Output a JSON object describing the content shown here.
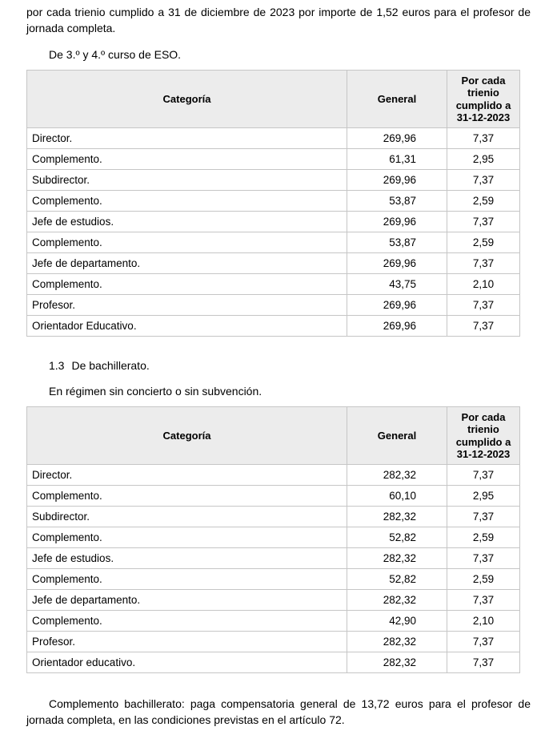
{
  "document": {
    "intro_paragraph": "por cada trienio cumplido a 31 de diciembre de 2023 por importe de 1,52 euros para el profesor de jornada completa.",
    "eso_heading": "De 3.º y 4.º curso de ESO.",
    "section": {
      "number": "1.3",
      "title": "De bachillerato."
    },
    "bachillerato_intro": "En régimen sin concierto o sin subvención.",
    "closing_paragraph": "Complemento bachillerato: paga compensatoria general de 13,72 euros para el profesor de jornada completa, en las condiciones previstas en el artículo 72."
  },
  "colors": {
    "page_bg": "#ffffff",
    "text": "#000000",
    "table_border": "#c6c6c6",
    "table_header_bg": "#ececec"
  },
  "tables": {
    "eso": {
      "headers": [
        "Categoría",
        "General",
        "Por cada trienio cumplido a 31-12-2023"
      ],
      "rows": [
        [
          "Director.",
          "269,96",
          "7,37"
        ],
        [
          "Complemento.",
          "61,31",
          "2,95"
        ],
        [
          "Subdirector.",
          "269,96",
          "7,37"
        ],
        [
          "Complemento.",
          "53,87",
          "2,59"
        ],
        [
          "Jefe de estudios.",
          "269,96",
          "7,37"
        ],
        [
          "Complemento.",
          "53,87",
          "2,59"
        ],
        [
          "Jefe de departamento.",
          "269,96",
          "7,37"
        ],
        [
          "Complemento.",
          "43,75",
          "2,10"
        ],
        [
          "Profesor.",
          "269,96",
          "7,37"
        ],
        [
          "Orientador Educativo.",
          "269,96",
          "7,37"
        ]
      ]
    },
    "bachillerato": {
      "headers": [
        "Categoría",
        "General",
        "Por cada trienio cumplido a 31-12-2023"
      ],
      "rows": [
        [
          "Director.",
          "282,32",
          "7,37"
        ],
        [
          "Complemento.",
          "60,10",
          "2,95"
        ],
        [
          "Subdirector.",
          "282,32",
          "7,37"
        ],
        [
          "Complemento.",
          "52,82",
          "2,59"
        ],
        [
          "Jefe de estudios.",
          "282,32",
          "7,37"
        ],
        [
          "Complemento.",
          "52,82",
          "2,59"
        ],
        [
          "Jefe de departamento.",
          "282,32",
          "7,37"
        ],
        [
          "Complemento.",
          "42,90",
          "2,10"
        ],
        [
          "Profesor.",
          "282,32",
          "7,37"
        ],
        [
          "Orientador educativo.",
          "282,32",
          "7,37"
        ]
      ]
    }
  }
}
